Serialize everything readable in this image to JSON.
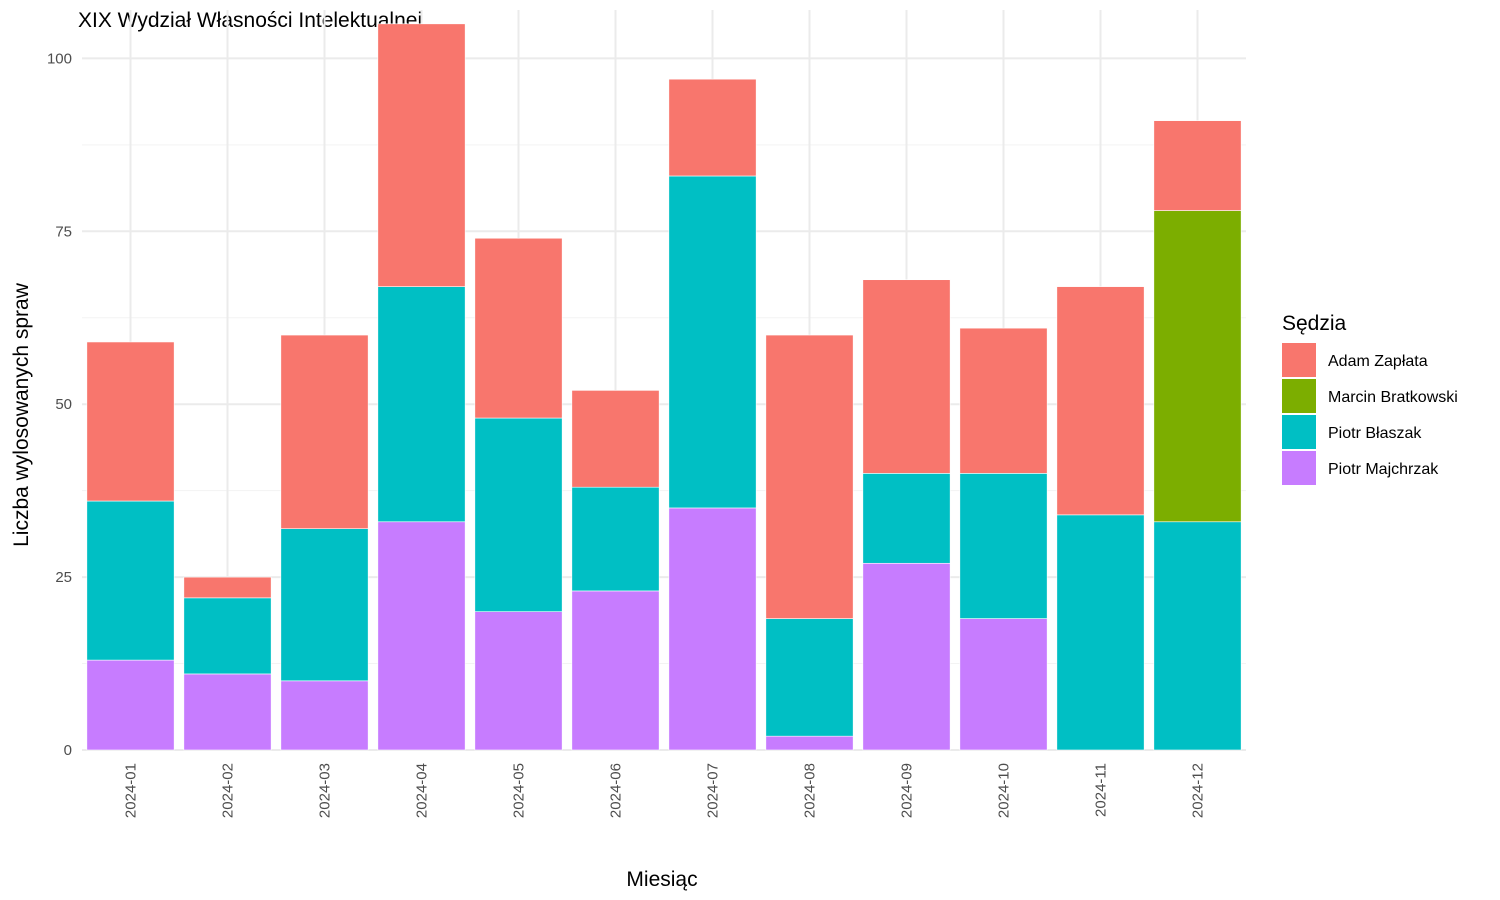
{
  "chart_data": {
    "type": "bar",
    "stacked": true,
    "title": "XIX Wydział Własności Intelektualnej",
    "xlabel": "Miesiąc",
    "ylabel": "Liczba wylosowanych spraw",
    "ylim": [
      0,
      107
    ],
    "yticks": [
      0,
      25,
      50,
      75,
      100
    ],
    "grid": true,
    "legend_title": "Sędzia",
    "legend_position": "right",
    "categories": [
      "2024-01",
      "2024-02",
      "2024-03",
      "2024-04",
      "2024-05",
      "2024-06",
      "2024-07",
      "2024-08",
      "2024-09",
      "2024-10",
      "2024-11",
      "2024-12"
    ],
    "series": [
      {
        "name": "Piotr Majchrzak",
        "color": "#C77CFF",
        "values": [
          13,
          11,
          10,
          33,
          20,
          23,
          35,
          2,
          27,
          19,
          0,
          0
        ]
      },
      {
        "name": "Piotr Błaszak",
        "color": "#00BFC4",
        "values": [
          23,
          11,
          22,
          34,
          28,
          15,
          48,
          17,
          13,
          21,
          34,
          33
        ]
      },
      {
        "name": "Marcin Bratkowski",
        "color": "#7CAE00",
        "values": [
          0,
          0,
          0,
          0,
          0,
          0,
          0,
          0,
          0,
          0,
          0,
          45
        ]
      },
      {
        "name": "Adam Zapłata",
        "color": "#F8766D",
        "values": [
          23,
          3,
          28,
          38,
          26,
          14,
          14,
          41,
          28,
          21,
          33,
          13
        ]
      }
    ],
    "legend_order": [
      "Adam Zapłata",
      "Marcin Bratkowski",
      "Piotr Błaszak",
      "Piotr Majchrzak"
    ]
  }
}
